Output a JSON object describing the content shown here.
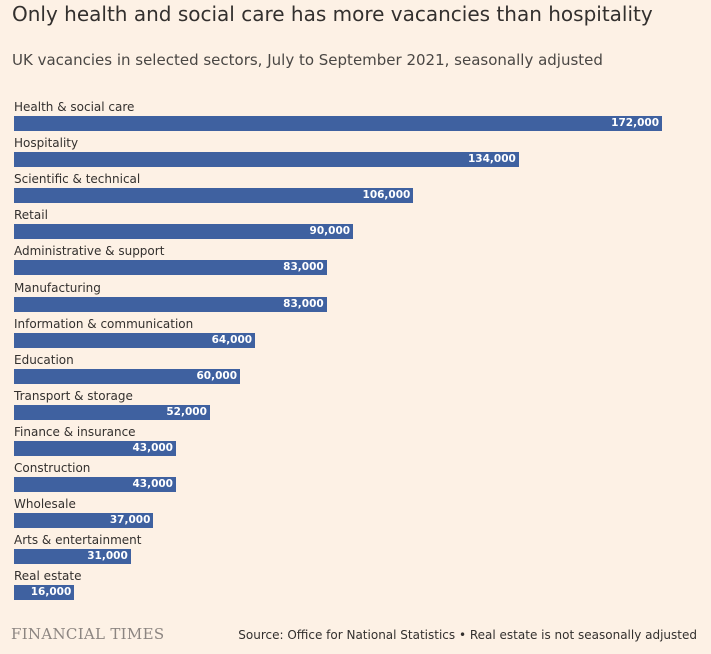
{
  "chart_data": {
    "type": "bar",
    "orientation": "horizontal",
    "title": "Only health and social care has more vacancies than hospitality",
    "subtitle": "UK vacancies in selected sectors, July to September 2021, seasonally adjusted",
    "categories": [
      "Health & social care",
      "Hospitality",
      "Scientific & technical",
      "Retail",
      "Administrative & support",
      "Manufacturing",
      "Information & communication",
      "Education",
      "Transport & storage",
      "Finance & insurance",
      "Construction",
      "Wholesale",
      "Arts & entertainment",
      "Real estate"
    ],
    "values": [
      172000,
      134000,
      106000,
      90000,
      83000,
      83000,
      64000,
      60000,
      52000,
      43000,
      43000,
      37000,
      31000,
      16000
    ],
    "value_labels": [
      "172,000",
      "134,000",
      "106,000",
      "90,000",
      "83,000",
      "83,000",
      "64,000",
      "60,000",
      "52,000",
      "43,000",
      "43,000",
      "37,000",
      "31,000",
      "16,000"
    ],
    "bar_color": "#3f61a0",
    "grid": false,
    "legend": "none"
  },
  "footer": {
    "brand": "FINANCIAL TIMES",
    "source": "Source: Office for National Statistics • Real estate is not seasonally adjusted"
  },
  "colors": {
    "background": "#fdf1e5",
    "text": "#33302e",
    "brand": "#8c8581"
  }
}
